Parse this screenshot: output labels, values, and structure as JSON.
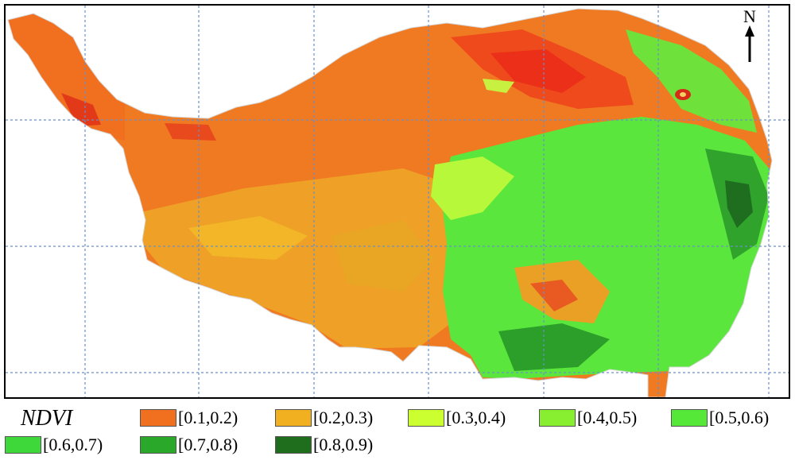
{
  "map": {
    "north_label": "N",
    "north-arrow-icon": "north-arrow-icon"
  },
  "legend": {
    "title": "NDVI",
    "items": [
      {
        "label": "[0.1,0.2)",
        "color": "#f07020"
      },
      {
        "label": "[0.2,0.3)",
        "color": "#f0b020"
      },
      {
        "label": "[0.3,0.4)",
        "color": "#ccff30"
      },
      {
        "label": "[0.4,0.5)",
        "color": "#88ee30"
      },
      {
        "label": "[0.5,0.6)",
        "color": "#55e838"
      },
      {
        "label": "[0.6,0.7)",
        "color": "#3ed83a"
      },
      {
        "label": "[0.7,0.8)",
        "color": "#2aa82a"
      },
      {
        "label": "[0.8,0.9)",
        "color": "#1e6e1e"
      }
    ]
  }
}
